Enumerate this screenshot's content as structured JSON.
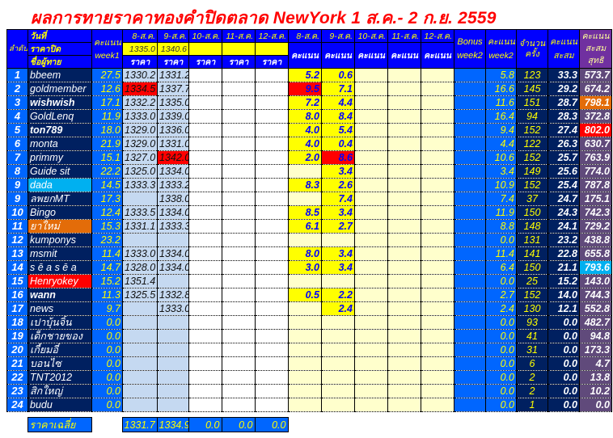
{
  "title": "ผลการทายราคาทองคำปิดตลาด NewYork 1 ส.ค.- 2 ก.ย. 2559",
  "header": {
    "rank": "ลำดับที่",
    "date_label": "วันที่",
    "close_label": "ราคาปิด",
    "name_label": "ชื่อผู้ทาย",
    "week1": "คะแนน week1",
    "dates": [
      "8-ส.ค.",
      "9-ส.ค.",
      "10-ส.ค.",
      "11-ส.ค.",
      "12-ส.ค."
    ],
    "closing_prices": [
      "1335.0",
      "1340.6",
      "",
      "",
      ""
    ],
    "price_label": "ราคา",
    "score_label": "คะแนน",
    "bonus": "Bonus week2",
    "week2": "คะแนน week2",
    "count": "จำนวนครั้ง",
    "accum": "คะแนนสะสม",
    "total": "คะแนนสะสมสุทธิ"
  },
  "colors": {
    "header": "#0000ff",
    "rank": "#0066ff",
    "name": "#002060",
    "total": "#604a7b",
    "score_hit": "#ffff00",
    "highlight_red": "#ff0000",
    "highlight_orange": "#e36c09",
    "highlight_cyan": "#00b0f0"
  },
  "rows": [
    {
      "rank": "1",
      "name": "bbeem",
      "week1": "27.5",
      "prices": [
        "1330.2",
        "1331.2",
        "",
        "",
        ""
      ],
      "scores": [
        "5.2",
        "0.6",
        "",
        "",
        ""
      ],
      "bonus": "",
      "week2": "5.8",
      "count": "123",
      "accum": "33.3",
      "total": "573.7"
    },
    {
      "rank": "2",
      "name": "goldmember",
      "week1": "12.6",
      "prices": [
        "1334.5",
        "1337.7",
        "",
        "",
        ""
      ],
      "scores": [
        "9.5",
        "7.1",
        "",
        "",
        ""
      ],
      "bonus": "",
      "week2": "16.6",
      "count": "145",
      "accum": "29.2",
      "total": "674.2",
      "hl": {
        "p0": "#ff0000",
        "s0": "#ff0000"
      }
    },
    {
      "rank": "3",
      "name": "wishwish",
      "bold": true,
      "week1": "17.1",
      "prices": [
        "1332.2",
        "1335.0",
        "",
        "",
        ""
      ],
      "scores": [
        "7.2",
        "4.4",
        "",
        "",
        ""
      ],
      "bonus": "",
      "week2": "11.6",
      "count": "151",
      "accum": "28.7",
      "total": "798.1",
      "hl": {
        "total": "#e36c09"
      }
    },
    {
      "rank": "4",
      "name": "GoldLenq",
      "week1": "11.9",
      "prices": [
        "1333.0",
        "1339.0",
        "",
        "",
        ""
      ],
      "scores": [
        "8.0",
        "8.4",
        "",
        "",
        ""
      ],
      "bonus": "",
      "week2": "16.4",
      "count": "94",
      "accum": "28.3",
      "total": "372.8"
    },
    {
      "rank": "5",
      "name": "ton789",
      "bold": true,
      "week1": "18.0",
      "prices": [
        "1329.0",
        "1336.0",
        "",
        "",
        ""
      ],
      "scores": [
        "4.0",
        "5.4",
        "",
        "",
        ""
      ],
      "bonus": "",
      "week2": "9.4",
      "count": "152",
      "accum": "27.4",
      "total": "802.0",
      "hl": {
        "total": "#ff0000"
      }
    },
    {
      "rank": "6",
      "name": "monta",
      "week1": "21.9",
      "prices": [
        "1329.0",
        "1331.0",
        "",
        "",
        ""
      ],
      "scores": [
        "4.0",
        "0.4",
        "",
        "",
        ""
      ],
      "bonus": "",
      "week2": "4.4",
      "count": "122",
      "accum": "26.3",
      "total": "630.7"
    },
    {
      "rank": "7",
      "name": "primmy",
      "week1": "15.1",
      "prices": [
        "1327.0",
        "1342.0",
        "",
        "",
        ""
      ],
      "scores": [
        "2.0",
        "8.6",
        "",
        "",
        ""
      ],
      "bonus": "",
      "week2": "10.6",
      "count": "152",
      "accum": "25.7",
      "total": "763.9",
      "hl": {
        "p1": "#ff0000",
        "s1": "#ff0000"
      }
    },
    {
      "rank": "8",
      "name": "Guide sit",
      "week1": "22.2",
      "prices": [
        "1325.0",
        "1334.0",
        "",
        "",
        ""
      ],
      "scores": [
        "",
        "3.4",
        "",
        "",
        ""
      ],
      "bonus": "",
      "week2": "3.4",
      "count": "149",
      "accum": "25.6",
      "total": "774.0"
    },
    {
      "rank": "9",
      "name": "dada",
      "week1": "14.5",
      "prices": [
        "1333.3",
        "1333.2",
        "",
        "",
        ""
      ],
      "scores": [
        "8.3",
        "2.6",
        "",
        "",
        ""
      ],
      "bonus": "",
      "week2": "10.9",
      "count": "152",
      "accum": "25.4",
      "total": "787.8",
      "hl": {
        "name": "#00b0f0"
      }
    },
    {
      "rank": "9",
      "name": "ลพยกMT",
      "week1": "17.3",
      "prices": [
        "",
        "1338.0",
        "",
        "",
        ""
      ],
      "scores": [
        "",
        "7.4",
        "",
        "",
        ""
      ],
      "bonus": "",
      "week2": "7.4",
      "count": "37",
      "accum": "24.7",
      "total": "175.1"
    },
    {
      "rank": "10",
      "name": "Bingo",
      "week1": "12.4",
      "prices": [
        "1333.5",
        "1334.0",
        "",
        "",
        ""
      ],
      "scores": [
        "8.5",
        "3.4",
        "",
        "",
        ""
      ],
      "bonus": "",
      "week2": "11.9",
      "count": "150",
      "accum": "24.3",
      "total": "742.3"
    },
    {
      "rank": "11",
      "name": "ยาใหม่",
      "week1": "15.3",
      "prices": [
        "1331.1",
        "1333.3",
        "",
        "",
        ""
      ],
      "scores": [
        "6.1",
        "2.7",
        "",
        "",
        ""
      ],
      "bonus": "",
      "week2": "8.8",
      "count": "148",
      "accum": "24.1",
      "total": "729.2",
      "hl": {
        "name": "#e36c09"
      }
    },
    {
      "rank": "12",
      "name": "kumponys",
      "week1": "23.2",
      "prices": [
        "",
        "",
        "",
        "",
        ""
      ],
      "scores": [
        "",
        "",
        "",
        "",
        ""
      ],
      "bonus": "",
      "week2": "0.0",
      "count": "131",
      "accum": "23.2",
      "total": "438.8"
    },
    {
      "rank": "13",
      "name": "msmit",
      "week1": "11.4",
      "prices": [
        "1333.0",
        "1334.0",
        "",
        "",
        ""
      ],
      "scores": [
        "8.0",
        "3.4",
        "",
        "",
        ""
      ],
      "bonus": "",
      "week2": "11.4",
      "count": "141",
      "accum": "22.8",
      "total": "655.8"
    },
    {
      "rank": "14",
      "name": "s ē a s ē a",
      "week1": "14.7",
      "prices": [
        "1328.0",
        "1334.0",
        "",
        "",
        ""
      ],
      "scores": [
        "3.0",
        "3.4",
        "",
        "",
        ""
      ],
      "bonus": "",
      "week2": "6.4",
      "count": "150",
      "accum": "21.1",
      "total": "793.6",
      "hl": {
        "total": "#00b0f0"
      }
    },
    {
      "rank": "15",
      "name": "Henryokey",
      "week1": "15.2",
      "prices": [
        "1351.4",
        "",
        "",
        "",
        ""
      ],
      "scores": [
        "",
        "",
        "",
        "",
        ""
      ],
      "bonus": "",
      "week2": "0.0",
      "count": "25",
      "accum": "15.2",
      "total": "143.0",
      "hl": {
        "name": "#ff0000"
      }
    },
    {
      "rank": "16",
      "name": "wann",
      "bold": true,
      "week1": "11.3",
      "prices": [
        "1325.5",
        "1332.8",
        "",
        "",
        ""
      ],
      "scores": [
        "0.5",
        "2.2",
        "",
        "",
        ""
      ],
      "bonus": "",
      "week2": "2.7",
      "count": "152",
      "accum": "14.0",
      "total": "744.3"
    },
    {
      "rank": "17",
      "name": "news",
      "week1": "9.7",
      "prices": [
        "",
        "1333.0",
        "",
        "",
        ""
      ],
      "scores": [
        "",
        "2.4",
        "",
        "",
        ""
      ],
      "bonus": "",
      "week2": "2.4",
      "count": "130",
      "accum": "12.1",
      "total": "552.8"
    },
    {
      "rank": "18",
      "name": "เปาบุ้นจิ้น",
      "week1": "0.0",
      "prices": [
        "",
        "",
        "",
        "",
        ""
      ],
      "scores": [
        "",
        "",
        "",
        "",
        ""
      ],
      "bonus": "",
      "week2": "0.0",
      "count": "93",
      "accum": "0.0",
      "total": "482.7"
    },
    {
      "rank": "19",
      "name": "เด็กชายของ",
      "week1": "0.0",
      "prices": [
        "",
        "",
        "",
        "",
        ""
      ],
      "scores": [
        "",
        "",
        "",
        "",
        ""
      ],
      "bonus": "",
      "week2": "0.0",
      "count": "41",
      "accum": "0.0",
      "total": "94.8"
    },
    {
      "rank": "20",
      "name": "เกี้ยมอี๋",
      "week1": "0.0",
      "prices": [
        "",
        "",
        "",
        "",
        ""
      ],
      "scores": [
        "",
        "",
        "",
        "",
        ""
      ],
      "bonus": "",
      "week2": "0.0",
      "count": "31",
      "accum": "0.0",
      "total": "173.3"
    },
    {
      "rank": "21",
      "name": "บอนไซ",
      "week1": "0.0",
      "prices": [
        "",
        "",
        "",
        "",
        ""
      ],
      "scores": [
        "",
        "",
        "",
        "",
        ""
      ],
      "bonus": "",
      "week2": "0.0",
      "count": "6",
      "accum": "0.0",
      "total": "4.7"
    },
    {
      "rank": "22",
      "name": "TNT2012",
      "week1": "0.0",
      "prices": [
        "",
        "",
        "",
        "",
        ""
      ],
      "scores": [
        "",
        "",
        "",
        "",
        ""
      ],
      "bonus": "",
      "week2": "0.0",
      "count": "2",
      "accum": "0.0",
      "total": "13.8"
    },
    {
      "rank": "23",
      "name": "สิกใหญ่",
      "week1": "0.0",
      "prices": [
        "",
        "",
        "",
        "",
        ""
      ],
      "scores": [
        "",
        "",
        "",
        "",
        ""
      ],
      "bonus": "",
      "week2": "0.0",
      "count": "2",
      "accum": "0.0",
      "total": "10.2"
    },
    {
      "rank": "24",
      "name": "budu",
      "week1": "0.0",
      "prices": [
        "",
        "",
        "",
        "",
        ""
      ],
      "scores": [
        "",
        "",
        "",
        "",
        ""
      ],
      "bonus": "",
      "week2": "0.0",
      "count": "1",
      "accum": "0.0",
      "total": "0.0"
    }
  ],
  "footer": {
    "label": "ราคาเฉลี่ย",
    "averages": [
      "1331.7",
      "1334.9",
      "0.0",
      "0.0",
      "0.0"
    ]
  }
}
